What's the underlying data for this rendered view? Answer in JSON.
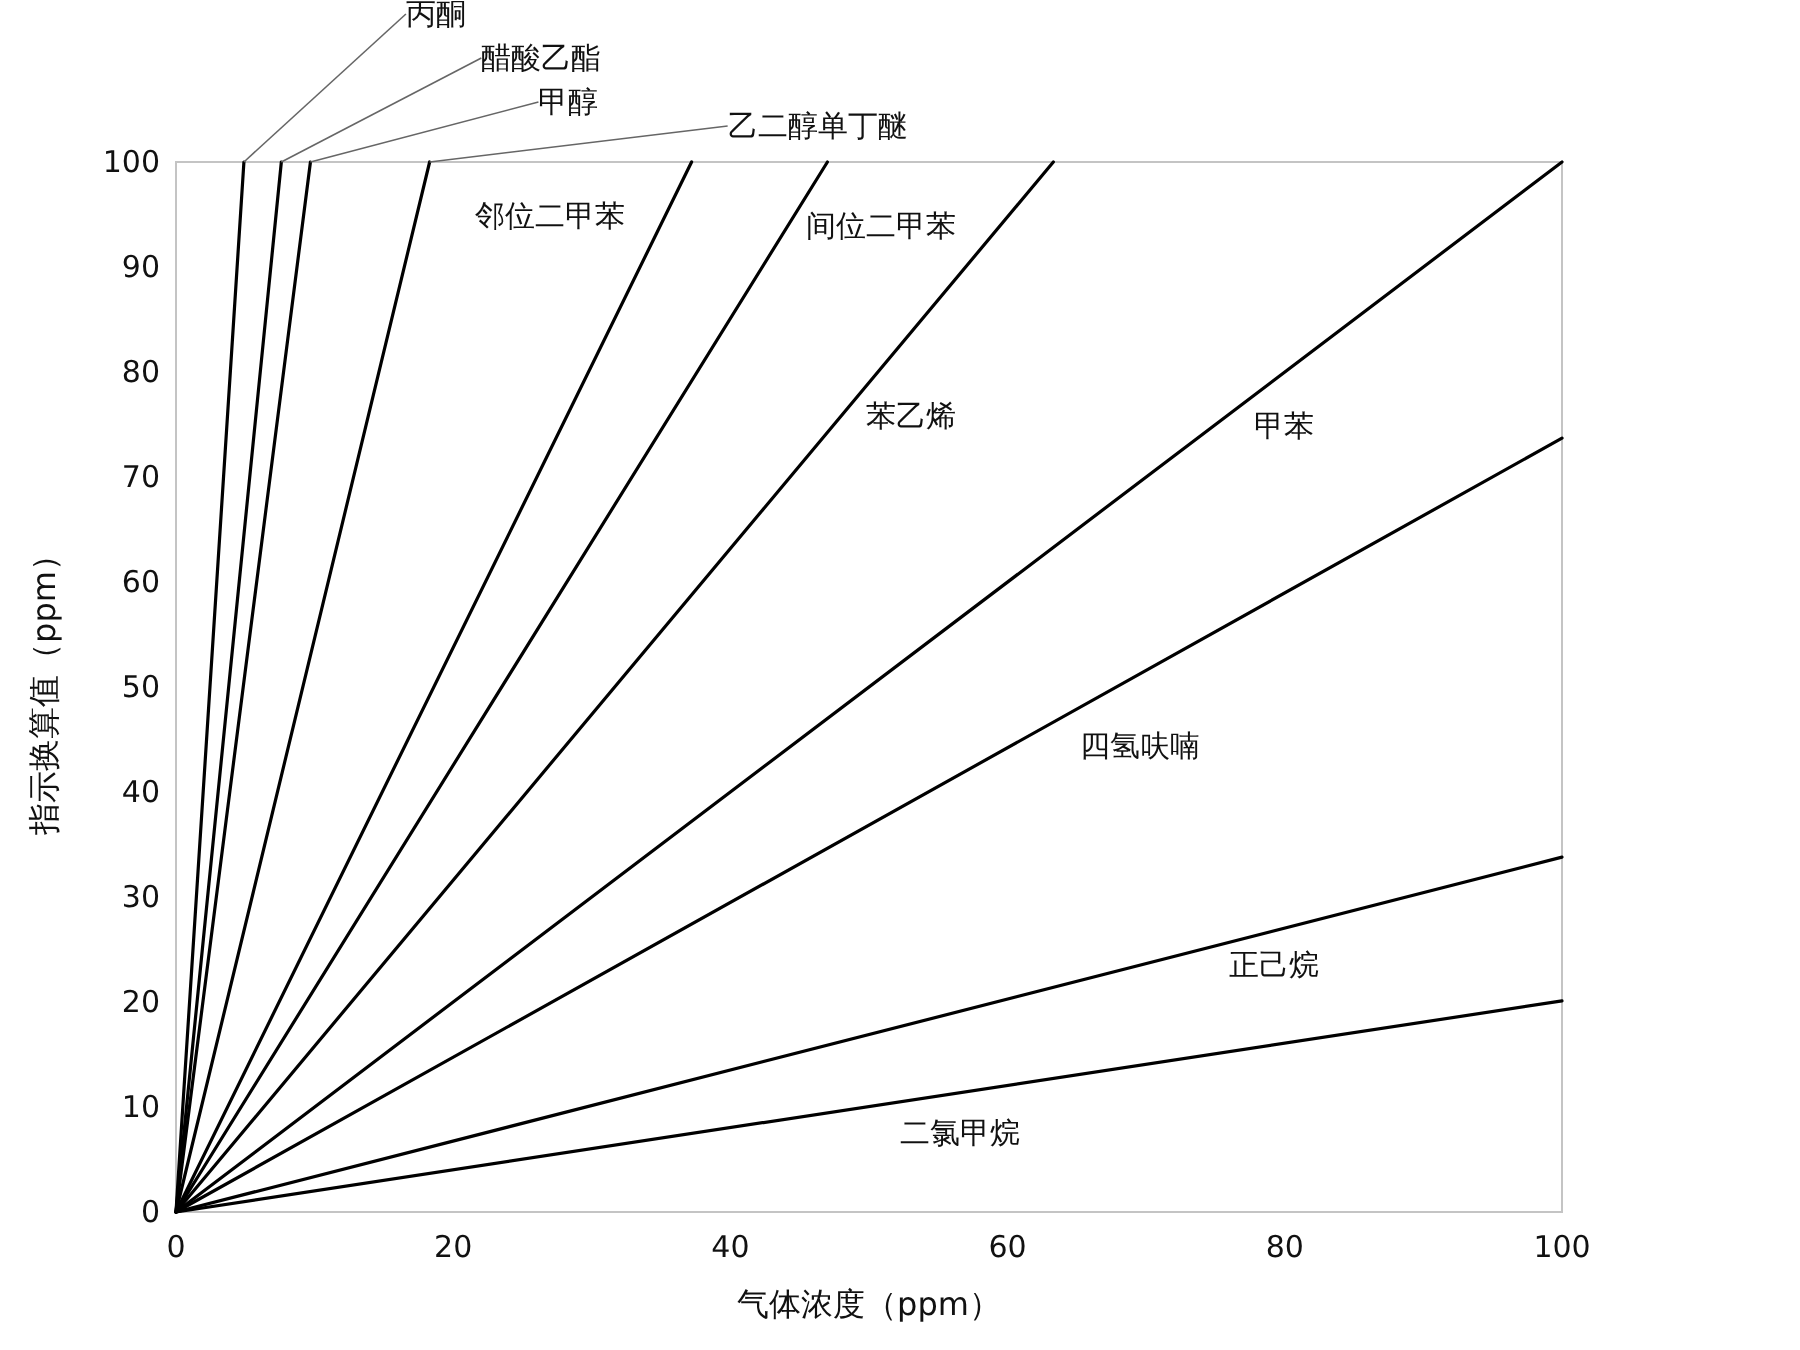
{
  "chart_data": {
    "type": "line",
    "xlabel": "气体浓度（ppm）",
    "ylabel": "指示换算值（ppm）",
    "xlim": [
      0,
      100
    ],
    "xticks": [
      0,
      20,
      40,
      60,
      80,
      100
    ],
    "ylim": [
      0,
      100
    ],
    "yticks": [
      0,
      10,
      20,
      30,
      40,
      50,
      60,
      70,
      80,
      90,
      100
    ],
    "series": [
      {
        "name": "丙酮",
        "color": "#000000",
        "x": [
          0,
          4.9
        ],
        "values": [
          0,
          100
        ]
      },
      {
        "name": "醋酸乙酯",
        "color": "#000000",
        "x": [
          0,
          7.6
        ],
        "values": [
          0,
          100
        ]
      },
      {
        "name": "甲醇",
        "color": "#000000",
        "x": [
          0,
          9.7
        ],
        "values": [
          0,
          100
        ]
      },
      {
        "name": "乙二醇单丁醚",
        "color": "#000000",
        "x": [
          0,
          18.3
        ],
        "values": [
          0,
          100
        ]
      },
      {
        "name": "邻位二甲苯",
        "color": "#000000",
        "x": [
          0,
          37.2
        ],
        "values": [
          0,
          100
        ]
      },
      {
        "name": "间位二甲苯",
        "color": "#000000",
        "x": [
          0,
          47
        ],
        "values": [
          0,
          100
        ]
      },
      {
        "name": "苯乙烯",
        "color": "#000000",
        "x": [
          0,
          63.3
        ],
        "values": [
          0,
          100
        ]
      },
      {
        "name": "甲苯",
        "color": "#000000",
        "x": [
          0,
          100
        ],
        "values": [
          0,
          100
        ]
      },
      {
        "name": "四氢呋喃",
        "color": "#000000",
        "x": [
          0,
          100
        ],
        "values": [
          0,
          73.7
        ]
      },
      {
        "name": "正己烷",
        "color": "#000000",
        "x": [
          0,
          100
        ],
        "values": [
          0,
          33.8
        ]
      },
      {
        "name": "二氯甲烷",
        "color": "#000000",
        "x": [
          0,
          100
        ],
        "values": [
          0,
          20.1
        ]
      }
    ]
  }
}
